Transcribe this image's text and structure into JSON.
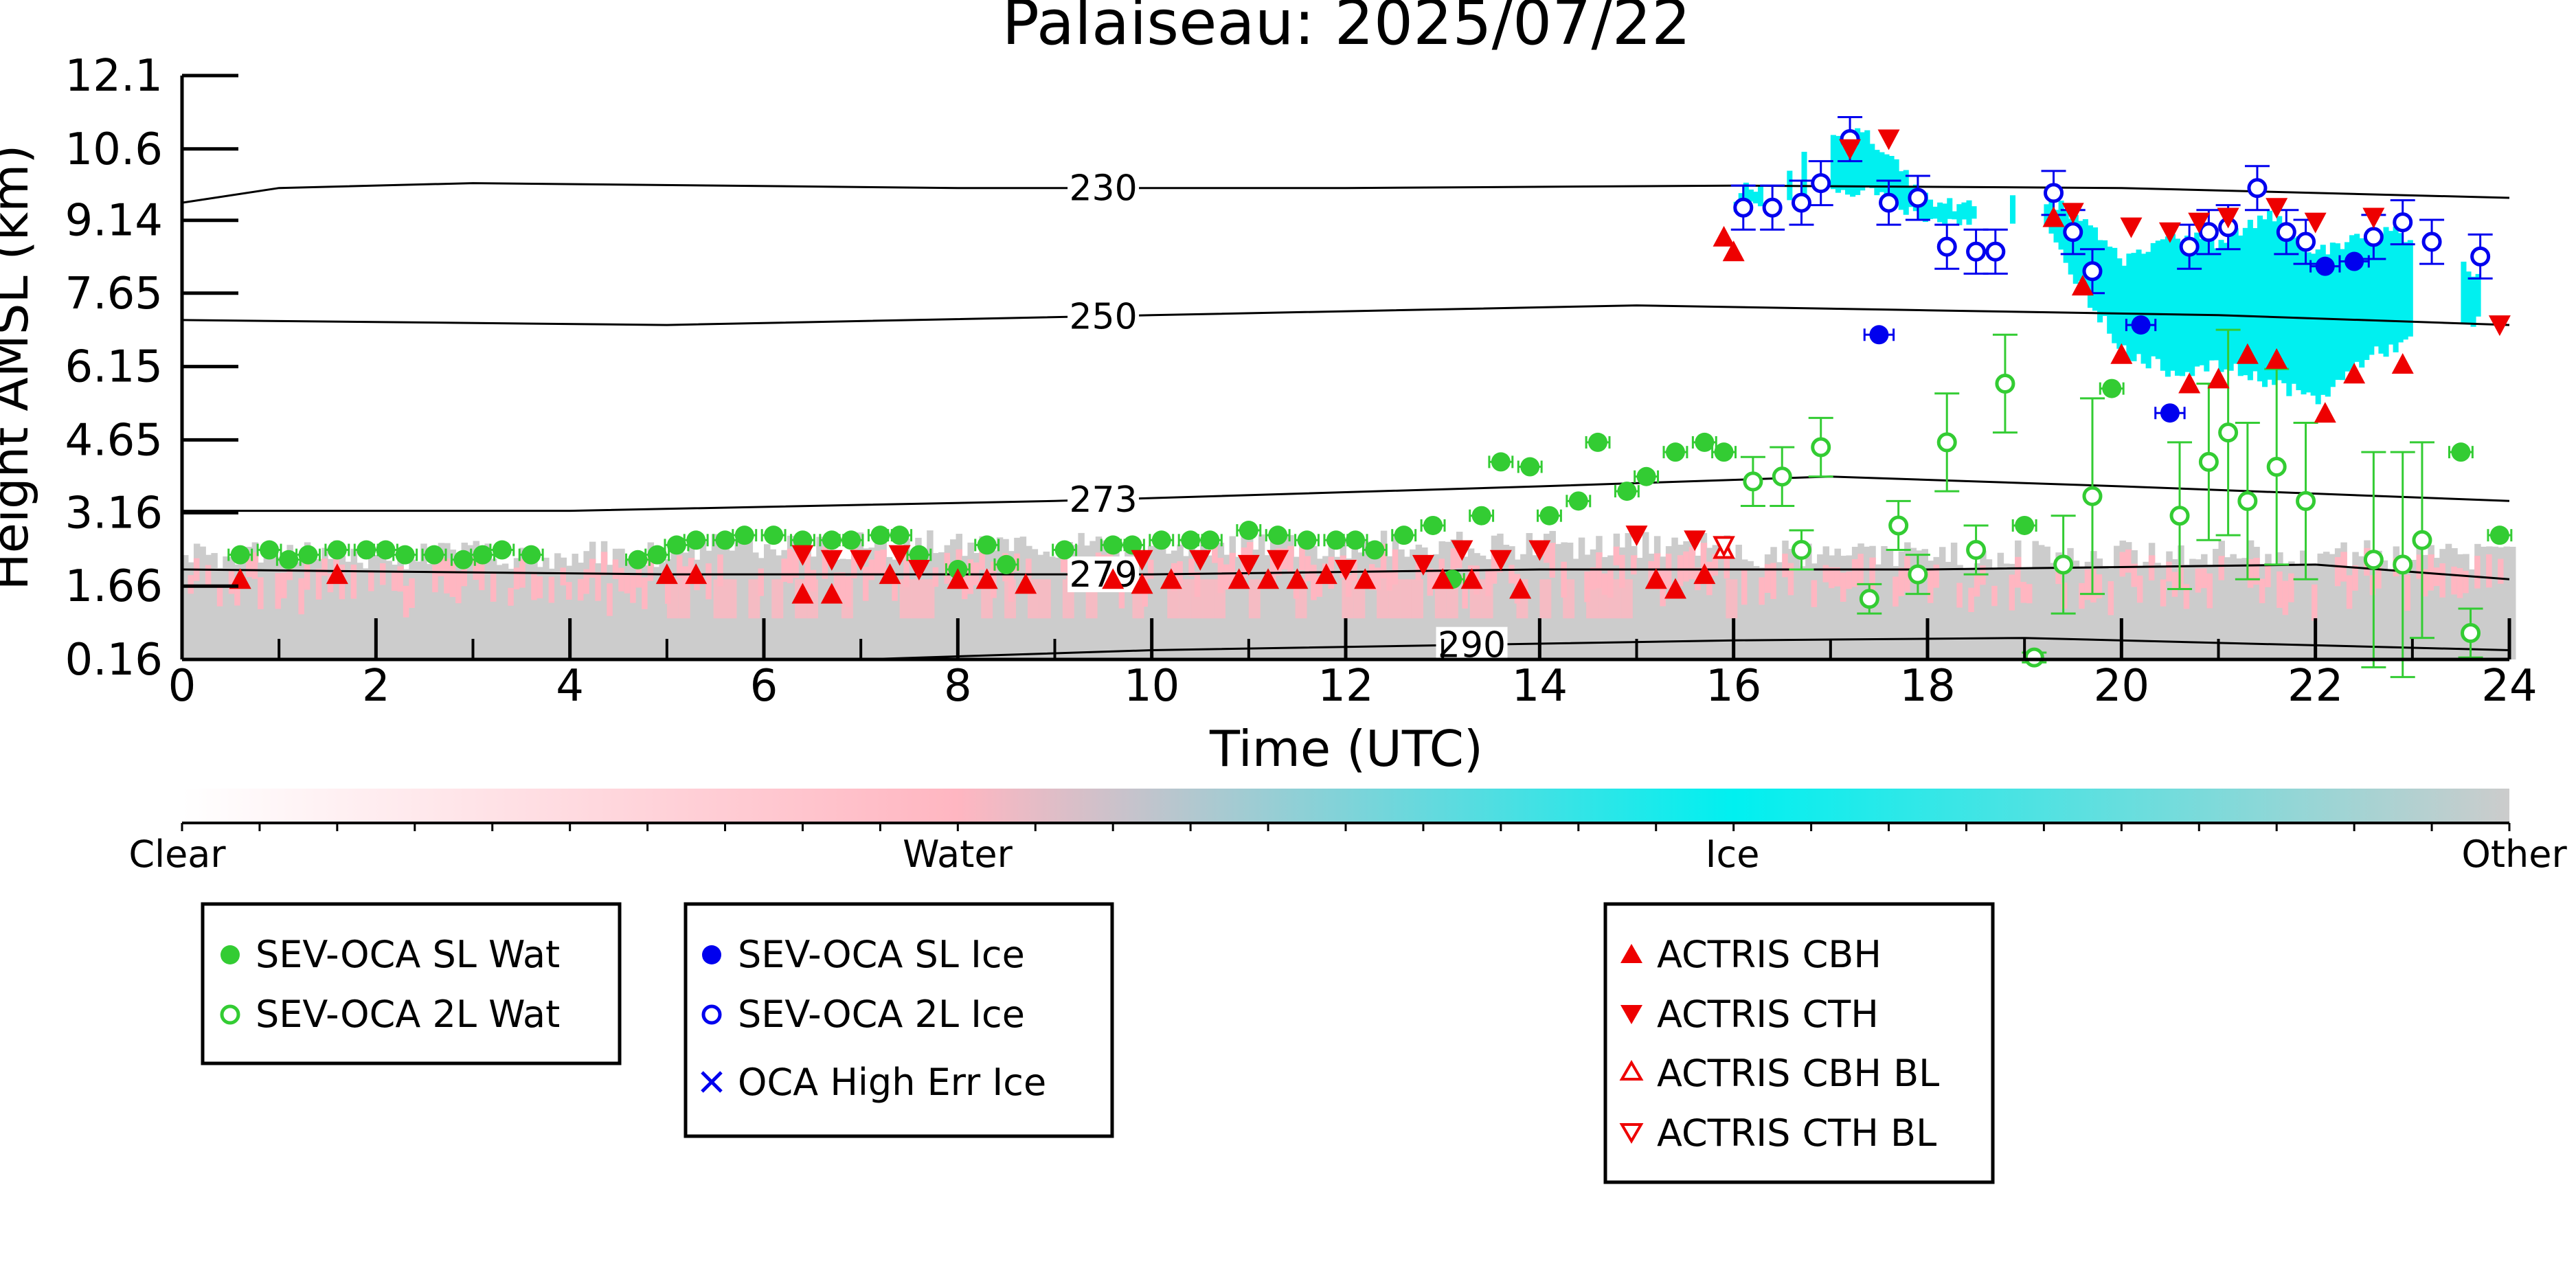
{
  "chart_data": {
    "type": "scatter",
    "title": "Palaiseau: 2025/07/22",
    "xlabel": "Time (UTC)",
    "ylabel": "Height AMSL (km)",
    "xlim": [
      0,
      24
    ],
    "ylim": [
      0.16,
      12.1
    ],
    "x_ticks": [
      0,
      2,
      4,
      6,
      8,
      10,
      12,
      14,
      16,
      18,
      20,
      22,
      24
    ],
    "y_ticks": [
      0.16,
      1.66,
      3.16,
      4.65,
      6.15,
      7.65,
      9.14,
      10.6,
      12.1
    ],
    "background": "cloud classification curtain (Clear / Water / Ice / Other)",
    "colorbar": {
      "labels": [
        "Clear",
        "Water",
        "Ice",
        "Other"
      ],
      "colors": [
        "#ffffff",
        "#ffb6c1",
        "#00f0f0",
        "#cccccc"
      ]
    },
    "temperature_contours": [
      {
        "label": "230",
        "x": [
          0,
          1,
          3,
          8,
          12,
          16,
          20,
          24
        ],
        "y": [
          9.5,
          9.8,
          9.9,
          9.8,
          9.8,
          9.85,
          9.8,
          9.6
        ]
      },
      {
        "label": "250",
        "x": [
          0,
          5,
          10,
          15,
          18,
          21,
          24
        ],
        "y": [
          7.1,
          7.0,
          7.2,
          7.4,
          7.3,
          7.2,
          7.0
        ]
      },
      {
        "label": "273",
        "x": [
          0,
          4,
          9,
          14,
          17,
          20,
          24
        ],
        "y": [
          3.2,
          3.2,
          3.4,
          3.7,
          3.9,
          3.7,
          3.4
        ]
      },
      {
        "label": "279",
        "x": [
          0,
          5,
          10,
          14,
          18,
          22,
          24
        ],
        "y": [
          2.0,
          1.9,
          1.9,
          2.0,
          2.0,
          2.1,
          1.8
        ]
      },
      {
        "label": "290",
        "x": [
          7,
          10,
          13,
          16,
          19,
          22,
          24
        ],
        "y": [
          0.16,
          0.35,
          0.45,
          0.55,
          0.6,
          0.45,
          0.35
        ]
      }
    ],
    "series": [
      {
        "name": "SEV-OCA SL Wat",
        "marker": "filled-circle",
        "color": "#33cc33",
        "x": [
          0.6,
          0.9,
          1.1,
          1.3,
          1.6,
          1.9,
          2.1,
          2.3,
          2.6,
          2.9,
          3.1,
          3.3,
          3.6,
          4.7,
          4.9,
          5.1,
          5.3,
          5.6,
          5.8,
          6.1,
          6.4,
          6.7,
          6.9,
          7.2,
          7.4,
          7.6,
          8.0,
          8.3,
          8.5,
          9.1,
          9.6,
          9.8,
          10.1,
          10.4,
          10.6,
          11.0,
          11.3,
          11.6,
          11.9,
          12.1,
          12.3,
          12.6,
          12.9,
          13.1,
          13.4,
          13.6,
          13.9,
          14.1,
          14.4,
          14.6,
          14.9,
          15.1,
          15.4,
          15.7,
          15.9,
          19.0,
          19.9,
          23.5,
          23.9
        ],
        "y": [
          2.3,
          2.4,
          2.2,
          2.3,
          2.4,
          2.4,
          2.4,
          2.3,
          2.3,
          2.2,
          2.3,
          2.4,
          2.3,
          2.2,
          2.3,
          2.5,
          2.6,
          2.6,
          2.7,
          2.7,
          2.6,
          2.6,
          2.6,
          2.7,
          2.7,
          2.3,
          2.0,
          2.5,
          2.1,
          2.4,
          2.5,
          2.5,
          2.6,
          2.6,
          2.6,
          2.8,
          2.7,
          2.6,
          2.6,
          2.6,
          2.4,
          2.7,
          2.9,
          1.8,
          3.1,
          4.2,
          4.1,
          3.1,
          3.4,
          4.6,
          3.6,
          3.9,
          4.4,
          4.6,
          4.4,
          2.9,
          5.7,
          4.4,
          2.7
        ],
        "xerr": 0.12
      },
      {
        "name": "SEV-OCA 2L Wat",
        "marker": "open-circle",
        "color": "#33cc33",
        "x": [
          16.2,
          16.5,
          16.7,
          16.9,
          17.4,
          17.7,
          17.9,
          18.2,
          18.5,
          18.8,
          19.1,
          19.4,
          19.7,
          20.6,
          20.9,
          21.1,
          21.3,
          21.6,
          21.9,
          22.6,
          22.9,
          23.1,
          23.6
        ],
        "y": [
          3.8,
          3.9,
          2.4,
          4.5,
          1.4,
          2.9,
          1.9,
          4.6,
          2.4,
          5.8,
          0.2,
          2.1,
          3.5,
          3.1,
          4.2,
          4.8,
          3.4,
          4.1,
          3.4,
          2.2,
          2.1,
          2.6,
          0.7
        ],
        "yerr": [
          0.5,
          0.6,
          0.4,
          0.6,
          0.3,
          0.5,
          0.4,
          1.0,
          0.5,
          1.0,
          0.1,
          1.0,
          2.0,
          1.5,
          1.6,
          2.1,
          1.6,
          2.0,
          1.6,
          2.2,
          2.3,
          2.0,
          0.5
        ]
      },
      {
        "name": "SEV-OCA SL Ice",
        "marker": "filled-circle",
        "color": "#0000ee",
        "x": [
          17.5,
          20.2,
          20.5,
          22.1,
          22.4
        ],
        "y": [
          6.8,
          7.0,
          5.2,
          8.2,
          8.3
        ],
        "xerr": 0.15
      },
      {
        "name": "SEV-OCA 2L Ice",
        "marker": "open-circle",
        "color": "#0000ee",
        "x": [
          16.1,
          16.4,
          16.7,
          16.9,
          17.2,
          17.6,
          17.9,
          18.2,
          18.5,
          18.7,
          19.3,
          19.5,
          19.7,
          20.7,
          20.9,
          21.1,
          21.4,
          21.7,
          21.9,
          22.6,
          22.9,
          23.2,
          23.7
        ],
        "y": [
          9.4,
          9.4,
          9.5,
          9.9,
          10.8,
          9.5,
          9.6,
          8.6,
          8.5,
          8.5,
          9.7,
          8.9,
          8.1,
          8.6,
          8.9,
          9.0,
          9.8,
          8.9,
          8.7,
          8.8,
          9.1,
          8.7,
          8.4
        ],
        "yerr": 0.45
      },
      {
        "name": "OCA High Err Ice",
        "marker": "x",
        "color": "#0000ee",
        "x": [],
        "y": []
      },
      {
        "name": "ACTRIS CBH",
        "marker": "triangle-up",
        "color": "#ee0000",
        "x": [
          0.6,
          1.6,
          5.0,
          5.3,
          6.4,
          6.7,
          7.3,
          8.0,
          8.3,
          8.7,
          9.6,
          9.9,
          10.2,
          10.9,
          11.2,
          11.5,
          11.8,
          12.2,
          13.0,
          13.3,
          13.8,
          15.2,
          15.4,
          15.7,
          15.9,
          16.0,
          19.3,
          19.6,
          20.0,
          20.7,
          21.0,
          21.3,
          21.6,
          22.1,
          22.4,
          22.9
        ],
        "y": [
          1.8,
          1.9,
          1.9,
          1.9,
          1.5,
          1.5,
          1.9,
          1.8,
          1.8,
          1.7,
          1.8,
          1.7,
          1.8,
          1.8,
          1.8,
          1.8,
          1.9,
          1.8,
          1.8,
          1.8,
          1.6,
          1.8,
          1.6,
          1.9,
          8.8,
          8.5,
          9.2,
          7.8,
          6.4,
          5.8,
          5.9,
          6.4,
          6.3,
          5.2,
          6.0,
          6.2
        ]
      },
      {
        "name": "ACTRIS CTH",
        "marker": "triangle-down",
        "color": "#ee0000",
        "x": [
          6.4,
          6.7,
          7.0,
          7.4,
          7.6,
          9.9,
          10.5,
          11.0,
          11.3,
          12.0,
          12.8,
          13.2,
          13.6,
          14.0,
          15.0,
          15.6,
          17.2,
          17.6,
          19.5,
          20.1,
          20.5,
          20.8,
          21.1,
          21.6,
          22.0,
          22.6,
          23.9
        ],
        "y": [
          2.3,
          2.2,
          2.2,
          2.3,
          2.0,
          2.2,
          2.2,
          2.1,
          2.2,
          2.0,
          2.1,
          2.4,
          2.2,
          2.4,
          2.7,
          2.6,
          10.6,
          10.8,
          9.3,
          9.0,
          8.9,
          9.1,
          9.2,
          9.4,
          9.1,
          9.2,
          7.0
        ]
      },
      {
        "name": "ACTRIS CBH BL",
        "marker": "open-triangle-up",
        "color": "#ee0000",
        "x": [
          15.9
        ],
        "y": [
          2.4
        ]
      },
      {
        "name": "ACTRIS CTH BL",
        "marker": "open-triangle-down",
        "color": "#ee0000",
        "x": [
          15.9
        ],
        "y": [
          2.5
        ]
      }
    ]
  },
  "legend": {
    "box1": [
      "SEV-OCA SL Wat",
      "SEV-OCA 2L Wat"
    ],
    "box2": [
      "SEV-OCA SL Ice",
      "SEV-OCA 2L Ice",
      "OCA High Err Ice"
    ],
    "box3": [
      "ACTRIS CBH",
      "ACTRIS CTH",
      "ACTRIS CBH BL",
      "ACTRIS CTH BL"
    ]
  }
}
